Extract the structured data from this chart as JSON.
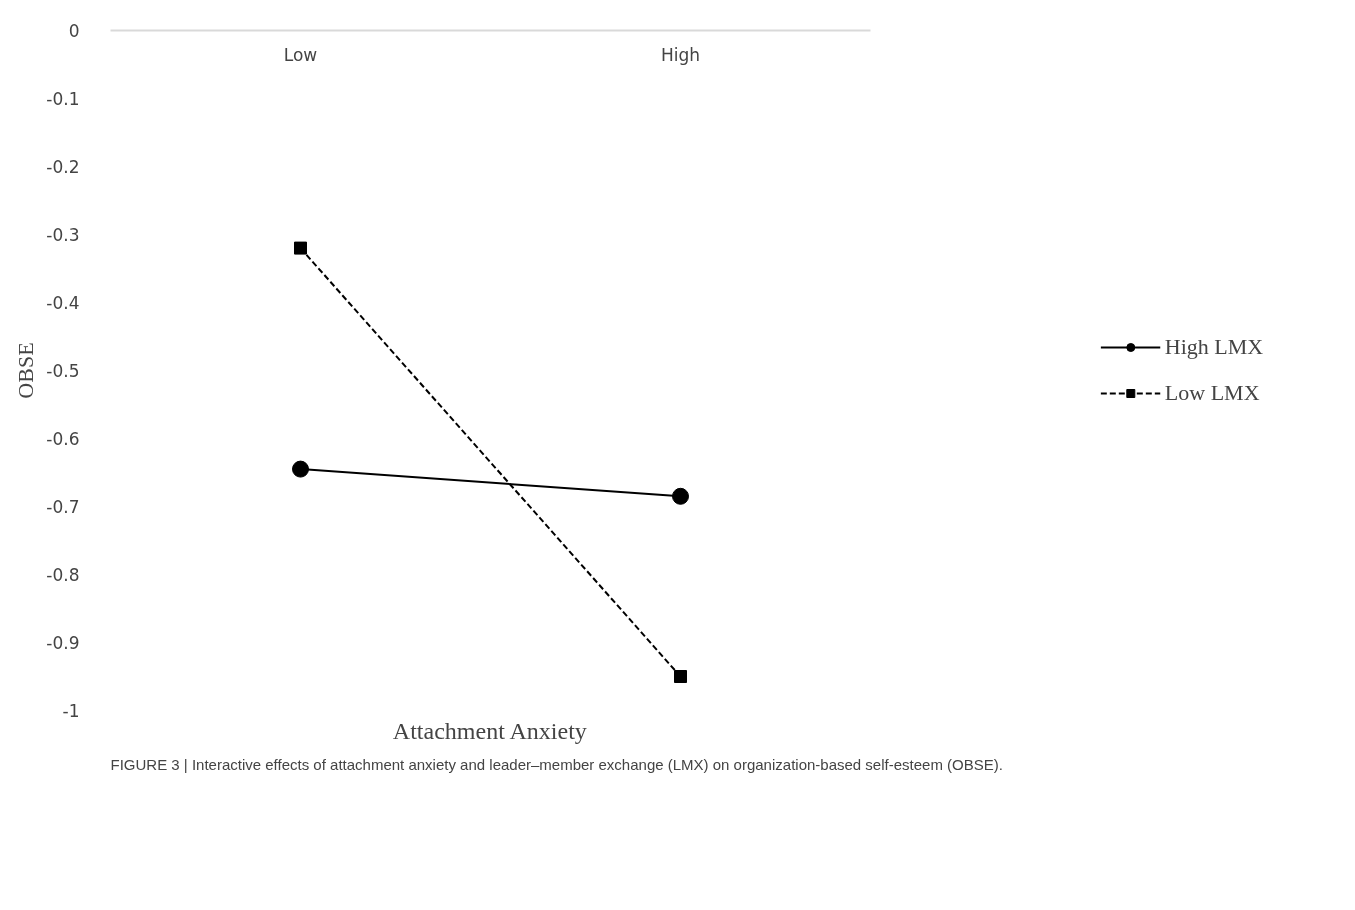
{
  "chart_data": {
    "type": "line",
    "xlabel": "Attachment Anxiety",
    "ylabel": "OBSE",
    "categories": [
      "Low",
      "High"
    ],
    "series": [
      {
        "name": "High LMX",
        "color": "#000000",
        "values": [
          -0.645,
          -0.685
        ],
        "marker": "circle",
        "line_style": "solid"
      },
      {
        "name": "Low LMX",
        "color": "#000000",
        "values": [
          -0.32,
          -0.95
        ],
        "marker": "square",
        "line_style": "dashed"
      }
    ],
    "ylim": [
      -1,
      0
    ],
    "yticks": [
      0,
      -0.1,
      -0.2,
      -0.3,
      -0.4,
      -0.5,
      -0.6,
      -0.7,
      -0.8,
      -0.9,
      -1
    ],
    "grid": false,
    "legend": "right",
    "annotations": [
      "FIGURE 3 | Interactive effects of attachment anxiety and leader–member exchange (LMX) on organization-based self-esteem (OBSE)."
    ]
  }
}
